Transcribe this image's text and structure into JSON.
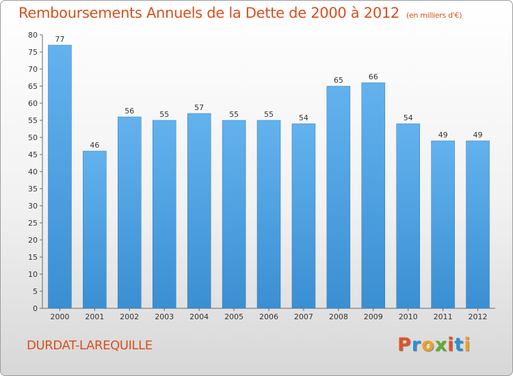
{
  "chart_data": {
    "type": "bar",
    "title": "Remboursements Annuels de la Dette de 2000 à 2012",
    "subtitle": "(en milliers d'€)",
    "categories": [
      "2000",
      "2001",
      "2002",
      "2003",
      "2004",
      "2005",
      "2006",
      "2007",
      "2008",
      "2009",
      "2010",
      "2011",
      "2012"
    ],
    "values": [
      77,
      46,
      56,
      55,
      57,
      55,
      55,
      54,
      65,
      66,
      54,
      49,
      49
    ],
    "ylim": [
      0,
      80
    ],
    "yticks": [
      0,
      5,
      10,
      15,
      20,
      25,
      30,
      35,
      40,
      45,
      50,
      55,
      60,
      65,
      70,
      75,
      80
    ],
    "grid": false,
    "bar_color": "#3a8fd2"
  },
  "footer": {
    "commune": "DURDAT-LAREQUILLE",
    "logo_letters": [
      "P",
      "r",
      "o",
      "x",
      "i",
      "t",
      "i"
    ],
    "logo_colors": [
      "#e0522a",
      "#2b8fd6",
      "#f0a020",
      "#5fae2c",
      "#e0522a",
      "#2b8fd6",
      "#f0a020"
    ]
  }
}
